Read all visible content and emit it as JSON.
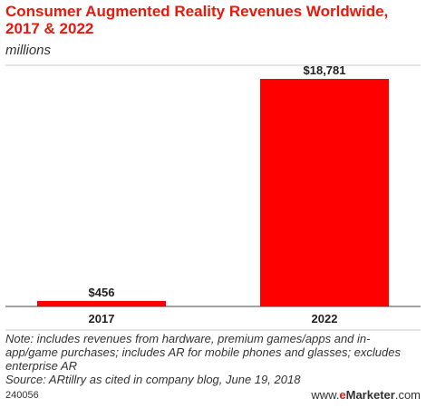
{
  "title": "Consumer Augmented Reality Revenues Worldwide, 2017 & 2022",
  "subtitle": "millions",
  "chart_data": {
    "type": "bar",
    "title": "Consumer Augmented Reality Revenues Worldwide, 2017 & 2022",
    "subtitle": "millions",
    "categories": [
      "2017",
      "2022"
    ],
    "values": [
      456,
      18781
    ],
    "value_labels": [
      "$456",
      "$18,781"
    ],
    "xlabel": "",
    "ylabel": "",
    "ylim": [
      0,
      20000
    ],
    "grid": false,
    "legend": "none",
    "bar_color": "#ff0000"
  },
  "note": "Note: includes revenues from hardware, premium games/apps and in-app/game purchases; includes AR for mobile phones and glasses; excludes enterprise AR",
  "source": "Source: ARtillry as cited in company blog, June 19, 2018",
  "footer": {
    "chart_id": "240056",
    "brand_prefix": "www.",
    "brand_e": "e",
    "brand_rest": "Marketer",
    "brand_suffix": ".com"
  },
  "colors": {
    "title": "#e8180c",
    "bar": "#ff0000",
    "text": "#333333"
  }
}
